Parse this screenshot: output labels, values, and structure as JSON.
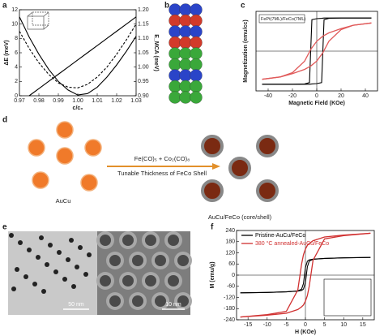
{
  "figure": {
    "panel_labels": [
      "a",
      "b",
      "c",
      "d",
      "e",
      "f"
    ],
    "scheme": {
      "reagents": "Fe(CO)₅ + Co₂(CO)₈",
      "arrow_label": "Tunable Thickness of FeCo Shell",
      "left_label": "AuCu",
      "right_label": "AuCu/FeCo (core/shell)"
    },
    "tem": {
      "scale_left": "50 nm",
      "scale_right": "10 nm"
    }
  },
  "chart_data": [
    {
      "type": "line",
      "x_label": "c/c₀",
      "y_label": "ΔE (meV)",
      "y2_label": "E_MCA (meV)",
      "x": [
        0.97,
        0.975,
        0.98,
        0.985,
        0.99,
        0.995,
        1.0,
        1.005,
        1.01,
        1.015,
        1.02,
        1.025,
        1.03
      ],
      "xlim": [
        0.97,
        1.03
      ],
      "xticks": [
        0.97,
        0.98,
        0.99,
        {
          "value": 1,
          "label": "1.00"
        },
        1.01,
        1.02,
        1.03
      ],
      "ylim": [
        0,
        12
      ],
      "yticks": [
        0,
        2,
        4,
        6,
        8,
        10,
        12
      ],
      "y2lim": [
        0.9,
        1.2
      ],
      "y2ticks": [
        {
          "value": 0.9,
          "label": "0.90"
        },
        0.95,
        {
          "value": 1,
          "label": "1.00"
        },
        1.05,
        {
          "value": 1.1,
          "label": "1.10"
        },
        1.15,
        {
          "value": 1.2,
          "label": "1.20"
        }
      ],
      "series": [
        {
          "color": "#000000",
          "style": "solid",
          "values": [
            11,
            8.2,
            5.8,
            3.7,
            2,
            0.8,
            0.1,
            0.3,
            1.2,
            2.6,
            4.3,
            6.2,
            8.3
          ]
        },
        {
          "color": "#000000",
          "style": "dashed",
          "values": [
            9,
            6.6,
            4.6,
            3,
            1.8,
            1.2,
            1.1,
            1.6,
            2.6,
            4,
            5.8,
            7.8,
            10
          ]
        },
        {
          "color": "#000000",
          "style": "solid",
          "axis": "y2",
          "values": [
            null,
            0.9,
            0.925,
            0.95,
            0.975,
            1.0,
            1.025,
            1.05,
            1.075,
            1.1,
            1.125,
            1.15,
            1.175
          ]
        }
      ]
    },
    {
      "type": "line",
      "x_label": "Magnetic Field (KOe)",
      "y_label": "Magnetization (emu/cc)",
      "annotation": "FePt(7ML)/FeCo(7ML)",
      "xlim": [
        -50,
        50
      ],
      "xticks": [
        -40,
        -20,
        0,
        20,
        40
      ],
      "ylim": [
        -1.2,
        1.2
      ],
      "series": [
        {
          "color": "#000000",
          "style": "solid",
          "x": [
            -45,
            -20,
            -10,
            -6,
            -4,
            0,
            4,
            6,
            10,
            20,
            45
          ],
          "values": [
            -1,
            -1,
            -0.99,
            -0.95,
            0.95,
            0.98,
            0.99,
            1,
            1,
            1,
            1
          ]
        },
        {
          "color": "#000000",
          "style": "solid",
          "x": [
            -45,
            -20,
            -10,
            -6,
            -4,
            0,
            4,
            6,
            10,
            20,
            45
          ],
          "values": [
            -1,
            -1,
            -1,
            -1,
            -0.99,
            -0.98,
            -0.95,
            0.95,
            0.99,
            1,
            1
          ]
        },
        {
          "color": "#e05a5a",
          "style": "solid",
          "x": [
            -45,
            -30,
            -20,
            -10,
            -5,
            0,
            5,
            10,
            20,
            30,
            45
          ],
          "values": [
            -0.85,
            -0.78,
            -0.65,
            -0.3,
            0.05,
            0.3,
            0.45,
            0.55,
            0.68,
            0.78,
            0.85
          ]
        },
        {
          "color": "#e05a5a",
          "style": "solid",
          "x": [
            -45,
            -30,
            -20,
            -10,
            -5,
            0,
            5,
            10,
            20,
            30,
            45
          ],
          "values": [
            -0.85,
            -0.78,
            -0.68,
            -0.55,
            -0.45,
            -0.3,
            -0.05,
            0.3,
            0.65,
            0.78,
            0.85
          ]
        }
      ]
    },
    {
      "type": "line",
      "x_label": "H (KOe)",
      "y_label": "M (emu/g)",
      "legend": "upper left",
      "xlim": [
        -18,
        18
      ],
      "xticks": [
        -15,
        -10,
        -5,
        0,
        5,
        10,
        15
      ],
      "ylim": [
        -240,
        240
      ],
      "yticks": [
        -240,
        -180,
        -120,
        -60,
        0,
        60,
        120,
        180,
        240
      ],
      "series": [
        {
          "name": "Pristine-AuCu/FeCo",
          "color": "#000000",
          "style": "solid",
          "x": [
            -17,
            -10,
            -5,
            -2,
            -1,
            -0.5,
            0,
            0.5,
            1,
            2,
            5,
            10,
            17
          ],
          "values": [
            -95,
            -93,
            -90,
            -85,
            -75,
            -45,
            40,
            75,
            82,
            86,
            90,
            93,
            95
          ]
        },
        {
          "color": "#000000",
          "style": "solid",
          "x": [
            -17,
            -10,
            -5,
            -2,
            -1,
            -0.5,
            0,
            0.5,
            1,
            2,
            5,
            10,
            17
          ],
          "values": [
            -95,
            -93,
            -90,
            -86,
            -82,
            -75,
            -40,
            45,
            75,
            85,
            90,
            93,
            95
          ]
        },
        {
          "name": "380 °C annealed-AuCu/FeCo",
          "color": "#d03030",
          "style": "solid",
          "x": [
            -17,
            -10,
            -5,
            -2,
            -1,
            -0.5,
            0,
            0.5,
            1,
            2,
            5,
            10,
            17
          ],
          "values": [
            -225,
            -212,
            -195,
            -80,
            60,
            110,
            140,
            160,
            170,
            185,
            205,
            215,
            225
          ]
        },
        {
          "color": "#d03030",
          "style": "solid",
          "x": [
            -17,
            -10,
            -5,
            -2,
            -1,
            -0.5,
            0,
            0.5,
            1,
            2,
            5,
            10,
            17
          ],
          "values": [
            -225,
            -215,
            -205,
            -185,
            -170,
            -160,
            -140,
            -110,
            -60,
            80,
            195,
            212,
            225
          ]
        }
      ]
    }
  ]
}
